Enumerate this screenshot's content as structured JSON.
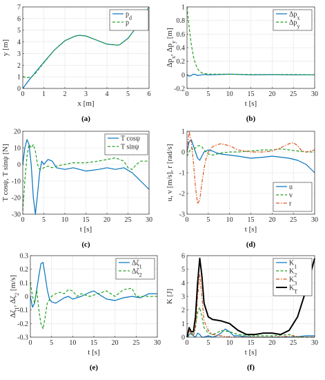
{
  "chart_data": [
    {
      "type": "line",
      "caption": "(a)",
      "xlabel": "x [m]",
      "ylabel": "y [m]",
      "xlim": [
        0,
        6
      ],
      "ylim": [
        0,
        7
      ],
      "xticks": [
        0,
        1,
        2,
        3,
        4,
        5,
        6
      ],
      "yticks": [
        0,
        1,
        2,
        3,
        4,
        5,
        6,
        7
      ],
      "legend": "top-left",
      "series": [
        {
          "name": "p_d",
          "color": "#0072BD",
          "dash": "solid",
          "x": [
            0,
            0.3,
            0.6,
            1,
            1.5,
            2,
            2.5,
            2.7,
            3,
            3.5,
            4,
            4.5,
            4.6,
            5,
            5.5,
            6
          ],
          "y": [
            0,
            0.72,
            1.38,
            2.25,
            3.3,
            4.1,
            4.5,
            4.56,
            4.5,
            4.15,
            3.8,
            3.72,
            3.75,
            4.3,
            5.5,
            7
          ]
        },
        {
          "name": "p",
          "color": "#22A022",
          "dash": "dashed",
          "x": [
            0,
            0.2,
            0.4,
            0.6,
            0.8,
            1,
            1.5,
            2,
            2.5,
            2.7,
            3,
            3.5,
            4,
            4.5,
            4.6,
            5,
            5.5,
            6
          ],
          "y": [
            1,
            0.93,
            0.95,
            1.3,
            1.75,
            2.2,
            3.3,
            4.1,
            4.5,
            4.56,
            4.5,
            4.15,
            3.8,
            3.72,
            3.75,
            4.3,
            5.5,
            7
          ]
        }
      ]
    },
    {
      "type": "line",
      "caption": "(b)",
      "xlabel": "t [s]",
      "ylabel": "Δp_x, Δp_y [m]",
      "xlim": [
        0,
        30
      ],
      "ylim": [
        -0.2,
        1
      ],
      "xticks": [
        0,
        5,
        10,
        15,
        20,
        25,
        30
      ],
      "yticks": [
        -0.2,
        0,
        0.2,
        0.4,
        0.6,
        0.8,
        1
      ],
      "legend": "top-right",
      "series": [
        {
          "name": "Δp_x",
          "color": "#0072BD",
          "dash": "solid",
          "x": [
            0,
            0.5,
            1,
            1.5,
            2,
            2.5,
            3,
            4,
            5,
            8,
            10,
            15,
            20,
            25,
            30
          ],
          "y": [
            0,
            -0.02,
            -0.01,
            0.01,
            0.005,
            -0.01,
            -0.005,
            0.005,
            0,
            0.005,
            0.01,
            0,
            0.003,
            0,
            0
          ]
        },
        {
          "name": "Δp_y",
          "color": "#22A022",
          "dash": "dashed",
          "x": [
            0,
            0.5,
            1,
            1.5,
            2,
            2.5,
            3,
            3.5,
            4,
            5,
            6,
            8,
            10,
            15,
            20,
            25,
            30
          ],
          "y": [
            1,
            0.7,
            0.45,
            0.27,
            0.16,
            0.09,
            0.05,
            0.03,
            0.02,
            0.01,
            0.01,
            0.01,
            0.01,
            0.005,
            0.005,
            0.005,
            0
          ]
        }
      ]
    },
    {
      "type": "line",
      "caption": "(c)",
      "xlabel": "t [s]",
      "ylabel": "T cosψ, T sinψ [N]",
      "xlim": [
        0,
        30
      ],
      "ylim": [
        -30,
        20
      ],
      "xticks": [
        0,
        5,
        10,
        15,
        20,
        25,
        30
      ],
      "yticks": [
        -30,
        -20,
        -10,
        0,
        10,
        20
      ],
      "legend": "top-right",
      "series": [
        {
          "name": "T cosψ",
          "color": "#0072BD",
          "dash": "solid",
          "x": [
            0,
            0.5,
            1,
            1.5,
            2,
            2.5,
            3,
            3.5,
            4,
            4.5,
            5,
            6,
            7,
            8,
            10,
            12,
            15,
            18,
            20,
            22,
            24,
            26,
            28,
            30
          ],
          "y": [
            0,
            10,
            15,
            12,
            0,
            -20,
            -30,
            -18,
            -5,
            2,
            0,
            3,
            2,
            -2,
            -3,
            -2,
            -4,
            -3,
            -2,
            -3,
            -2,
            -5,
            -10,
            -15
          ]
        },
        {
          "name": "T sinψ",
          "color": "#22A022",
          "dash": "dashed",
          "x": [
            0,
            0.5,
            1,
            1.5,
            2,
            2.5,
            3,
            3.5,
            4,
            5,
            6,
            7,
            8,
            10,
            12,
            15,
            18,
            20,
            22,
            24,
            25,
            26,
            27,
            28,
            30
          ],
          "y": [
            -28,
            -10,
            5,
            12,
            10,
            12,
            8,
            0,
            -3,
            -2,
            -1,
            -2,
            -1,
            0,
            1,
            1,
            2,
            3,
            4,
            2,
            -2,
            -3,
            0,
            2,
            2
          ]
        }
      ]
    },
    {
      "type": "line",
      "caption": "(d)",
      "xlabel": "t [s]",
      "ylabel": "u, v [m/s], r [rad/s]",
      "xlim": [
        0,
        30
      ],
      "ylim": [
        -3,
        1
      ],
      "xticks": [
        0,
        5,
        10,
        15,
        20,
        25,
        30
      ],
      "yticks": [
        -3,
        -2,
        -1,
        0,
        1
      ],
      "legend": "bottom-right",
      "series": [
        {
          "name": "u",
          "color": "#0072BD",
          "dash": "solid",
          "x": [
            0,
            0.5,
            1,
            1.5,
            2,
            2.5,
            3,
            3.5,
            4,
            5,
            6,
            7,
            8,
            10,
            12,
            15,
            18,
            20,
            22,
            24,
            26,
            28,
            30
          ],
          "y": [
            0,
            0.5,
            0.6,
            0.3,
            0,
            -0.3,
            -0.4,
            -0.2,
            0,
            0.1,
            0.05,
            -0.05,
            -0.1,
            -0.15,
            -0.2,
            -0.3,
            -0.25,
            -0.2,
            -0.25,
            -0.3,
            -0.4,
            -0.6,
            -1
          ]
        },
        {
          "name": "v",
          "color": "#22A022",
          "dash": "dashed",
          "x": [
            0,
            0.5,
            1,
            1.5,
            2,
            2.5,
            3,
            3.5,
            4,
            5,
            6,
            7,
            8,
            10,
            12,
            15,
            18,
            20,
            22,
            24,
            26,
            28,
            30
          ],
          "y": [
            -0.2,
            0,
            0.2,
            0.1,
            0.2,
            0.3,
            0.3,
            0.25,
            0.1,
            -0.1,
            -0.15,
            -0.1,
            -0.05,
            0,
            0,
            0.05,
            0.1,
            0.1,
            0.15,
            0.1,
            0.05,
            0,
            0
          ]
        },
        {
          "name": "r",
          "color": "#D95319",
          "dash": "dashdot",
          "x": [
            0,
            0.5,
            1,
            1.5,
            2,
            2.5,
            3,
            3.5,
            4,
            4.5,
            5,
            6,
            7,
            8,
            10,
            12,
            15,
            18,
            20,
            22,
            24,
            25,
            26,
            27,
            28,
            30
          ],
          "y": [
            0,
            1,
            0.5,
            -0.5,
            -1.7,
            -2.5,
            -2.3,
            -1.5,
            -0.8,
            -0.3,
            0,
            0.25,
            0.35,
            0.4,
            0.3,
            0.1,
            0,
            0,
            0.05,
            0.2,
            0.4,
            0.45,
            0.3,
            0.05,
            0,
            0.1
          ]
        }
      ]
    },
    {
      "type": "line",
      "caption": "(e)",
      "xlabel": "t [s]",
      "ylabel": "Δζ_1, Δζ_2 [m/s]",
      "xlim": [
        0,
        30
      ],
      "ylim": [
        -0.3,
        0.3
      ],
      "xticks": [
        0,
        5,
        10,
        15,
        20,
        25,
        30
      ],
      "yticks": [
        -0.3,
        -0.2,
        -0.1,
        0,
        0.1,
        0.2,
        0.3
      ],
      "legend": "top-right",
      "series": [
        {
          "name": "Δζ_1",
          "color": "#0072BD",
          "dash": "solid",
          "x": [
            0,
            0.5,
            1,
            1.5,
            2,
            2.5,
            3,
            3.5,
            4,
            4.5,
            5,
            6,
            7,
            8,
            9,
            10,
            12,
            14,
            15,
            16,
            18,
            20,
            22,
            24,
            26,
            28,
            30
          ],
          "y": [
            0,
            -0.08,
            -0.05,
            0.05,
            0.15,
            0.24,
            0.25,
            0.15,
            0.05,
            -0.02,
            -0.04,
            -0.05,
            -0.03,
            -0.01,
            0,
            -0.02,
            0,
            0.03,
            0.04,
            0.02,
            -0.02,
            -0.03,
            -0.01,
            0,
            -0.01,
            0.02,
            0.02
          ]
        },
        {
          "name": "Δζ_2",
          "color": "#22A022",
          "dash": "dashed",
          "x": [
            0,
            0.5,
            1,
            1.5,
            2,
            2.5,
            3,
            3.5,
            4,
            5,
            6,
            7,
            8,
            9,
            10,
            11,
            12,
            14,
            16,
            18,
            20,
            22,
            24,
            25,
            26,
            28,
            30
          ],
          "y": [
            0.1,
            0,
            -0.05,
            0.05,
            -0.1,
            -0.2,
            -0.24,
            -0.15,
            -0.05,
            0,
            0.02,
            0.03,
            0.02,
            0.05,
            0.04,
            0,
            0.02,
            0,
            0.02,
            0.04,
            0,
            0.05,
            0.06,
            0,
            0,
            0,
            0
          ]
        }
      ]
    },
    {
      "type": "line",
      "caption": "(f)",
      "xlabel": "t [s]",
      "ylabel": "K [J]",
      "xlim": [
        0,
        30
      ],
      "ylim": [
        0,
        6
      ],
      "xticks": [
        0,
        5,
        10,
        15,
        20,
        25,
        30
      ],
      "yticks": [
        0,
        1,
        2,
        3,
        4,
        5,
        6
      ],
      "legend": "top-right",
      "series": [
        {
          "name": "K_1",
          "color": "#0072BD",
          "dash": "solid",
          "x": [
            0,
            0.5,
            1,
            1.5,
            2,
            2.5,
            3,
            3.5,
            4,
            5,
            6,
            7,
            8,
            9,
            10,
            11,
            12,
            15,
            20,
            25,
            28,
            30
          ],
          "y": [
            0,
            0.2,
            0.3,
            0.1,
            0,
            0.3,
            0.2,
            0,
            0,
            0.1,
            0,
            0.1,
            0.3,
            0.6,
            0.4,
            0.1,
            0.1,
            0,
            0,
            0,
            0.1,
            0.1
          ]
        },
        {
          "name": "K_2",
          "color": "#22A022",
          "dash": "dashed",
          "x": [
            0,
            0.5,
            1,
            1.5,
            2,
            2.5,
            3,
            3.5,
            4,
            5,
            6,
            7,
            8,
            10,
            12,
            15,
            20,
            24,
            25,
            26,
            27,
            30
          ],
          "y": [
            0,
            0.1,
            0.2,
            0.3,
            0.8,
            1.8,
            2.2,
            1.5,
            0.7,
            0.3,
            0.2,
            0.3,
            0.5,
            0.4,
            0.2,
            0.1,
            0.1,
            0.2,
            0.1,
            0,
            0,
            0
          ]
        },
        {
          "name": "K_3",
          "color": "#D95319",
          "dash": "dashdot",
          "x": [
            0,
            0.5,
            1,
            1.5,
            2,
            2.5,
            3,
            3.5,
            4,
            5,
            6,
            8,
            10,
            15,
            20,
            25,
            27,
            30
          ],
          "y": [
            0,
            0.5,
            0.2,
            0.1,
            0.6,
            3,
            4.6,
            3,
            1.2,
            0.5,
            0.2,
            0.1,
            0,
            0,
            0,
            0.1,
            0,
            0
          ]
        },
        {
          "name": "K_T",
          "color": "#000000",
          "dash": "solid",
          "x": [
            0,
            0.5,
            1,
            1.5,
            2,
            2.5,
            3,
            3.5,
            4,
            5,
            6,
            8,
            10,
            12,
            14,
            16,
            18,
            20,
            22,
            24,
            26,
            28,
            30
          ],
          "y": [
            0,
            0.7,
            0.4,
            0.4,
            1.5,
            4,
            5.8,
            4.5,
            2.5,
            1.5,
            1.3,
            1.2,
            1,
            0.5,
            0.2,
            0.2,
            0.3,
            0.3,
            0.2,
            0.5,
            1.5,
            3.5,
            5.8
          ]
        }
      ]
    }
  ]
}
